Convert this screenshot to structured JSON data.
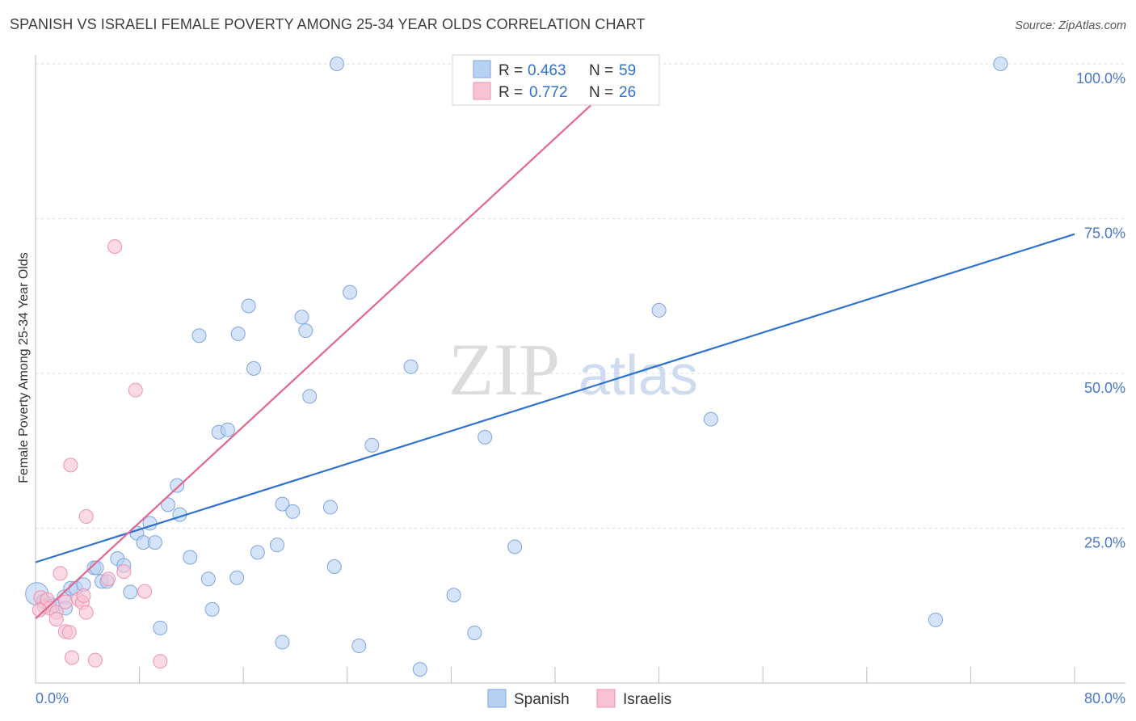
{
  "title": "SPANISH VS ISRAELI FEMALE POVERTY AMONG 25-34 YEAR OLDS CORRELATION CHART",
  "source": "Source: ZipAtlas.com",
  "watermark": {
    "zip": "ZIP",
    "atlas": "atlas"
  },
  "colors": {
    "spanish_fill": "#b8d0f2",
    "spanish_stroke": "#7ea6e0",
    "spanish_line": "#2f72cf",
    "israeli_fill": "#f7c3d4",
    "israeli_stroke": "#ee92b0",
    "israeli_line": "#e2678e",
    "tick_text": "#4a78c9",
    "grid": "#d9d9d9"
  },
  "legend": {
    "r_label": "R =",
    "n_label": "N =",
    "rows": [
      {
        "series": "Spanish",
        "r": "0.463",
        "n": "59"
      },
      {
        "series": "Israelis",
        "r": "0.772",
        "n": "26"
      }
    ]
  },
  "chart_data": {
    "type": "scatter",
    "title": "SPANISH VS ISRAELI FEMALE POVERTY AMONG 25-34 YEAR OLDS CORRELATION CHART",
    "xlabel": "",
    "ylabel": "Female Poverty Among 25-34 Year Olds",
    "xlim": [
      0,
      80
    ],
    "ylim": [
      0,
      100
    ],
    "x_tick_labels": [
      "0.0%",
      "80.0%"
    ],
    "y_ticks": [
      25,
      50,
      75,
      100
    ],
    "y_tick_labels": [
      "25.0%",
      "50.0%",
      "75.0%",
      "100.0%"
    ],
    "grid": true,
    "legend_position": "top-center",
    "series": [
      {
        "name": "Spanish",
        "color": "#b8d0f2",
        "regression": {
          "x": [
            0,
            80
          ],
          "y": [
            19.5,
            72.5
          ]
        },
        "points": [
          [
            0.1,
            14.4
          ],
          [
            1.1,
            12.8
          ],
          [
            1.4,
            12.5
          ],
          [
            2.2,
            13.9
          ],
          [
            2.3,
            12.1
          ],
          [
            2.7,
            15.3
          ],
          [
            3.1,
            15.3
          ],
          [
            3.7,
            15.9
          ],
          [
            4.5,
            18.6
          ],
          [
            4.7,
            18.6
          ],
          [
            5.1,
            16.4
          ],
          [
            5.5,
            16.4
          ],
          [
            6.3,
            20.1
          ],
          [
            6.8,
            19.0
          ],
          [
            7.3,
            14.7
          ],
          [
            7.8,
            24.2
          ],
          [
            8.3,
            22.7
          ],
          [
            8.8,
            25.8
          ],
          [
            9.2,
            22.7
          ],
          [
            9.6,
            8.9
          ],
          [
            10.2,
            28.8
          ],
          [
            10.9,
            31.9
          ],
          [
            11.1,
            27.2
          ],
          [
            11.9,
            20.3
          ],
          [
            12.6,
            56.1
          ],
          [
            13.3,
            16.8
          ],
          [
            13.6,
            11.9
          ],
          [
            14.1,
            40.5
          ],
          [
            14.8,
            40.9
          ],
          [
            15.5,
            17.0
          ],
          [
            15.6,
            56.4
          ],
          [
            16.4,
            60.9
          ],
          [
            16.8,
            50.8
          ],
          [
            17.1,
            21.1
          ],
          [
            18.6,
            22.3
          ],
          [
            19.0,
            28.9
          ],
          [
            19.0,
            6.6
          ],
          [
            19.8,
            27.7
          ],
          [
            20.5,
            59.1
          ],
          [
            20.8,
            56.9
          ],
          [
            21.1,
            46.3
          ],
          [
            22.7,
            28.4
          ],
          [
            23.0,
            18.8
          ],
          [
            23.2,
            100.0
          ],
          [
            24.2,
            63.1
          ],
          [
            24.9,
            6.0
          ],
          [
            25.9,
            38.4
          ],
          [
            28.9,
            51.1
          ],
          [
            29.6,
            2.2
          ],
          [
            32.2,
            14.2
          ],
          [
            33.8,
            8.1
          ],
          [
            34.6,
            39.7
          ],
          [
            36.9,
            22.0
          ],
          [
            47.1,
            100.0
          ],
          [
            48.0,
            60.2
          ],
          [
            52.0,
            42.6
          ],
          [
            69.3,
            10.2
          ],
          [
            74.3,
            100.0
          ],
          [
            0.6,
            13.2
          ]
        ]
      },
      {
        "name": "Israelis",
        "color": "#f7c3d4",
        "regression": {
          "x": [
            0,
            46.2
          ],
          "y": [
            10.4,
            100.0
          ]
        },
        "points": [
          [
            0.4,
            13.8
          ],
          [
            0.7,
            12.3
          ],
          [
            0.9,
            13.5
          ],
          [
            1.1,
            12.1
          ],
          [
            1.6,
            11.4
          ],
          [
            1.6,
            10.3
          ],
          [
            1.9,
            17.7
          ],
          [
            2.3,
            13.1
          ],
          [
            2.3,
            8.3
          ],
          [
            2.6,
            8.2
          ],
          [
            2.7,
            35.2
          ],
          [
            2.8,
            4.1
          ],
          [
            3.3,
            13.5
          ],
          [
            3.6,
            13.0
          ],
          [
            3.9,
            26.9
          ],
          [
            3.9,
            11.4
          ],
          [
            4.6,
            3.7
          ],
          [
            5.6,
            16.8
          ],
          [
            6.1,
            70.5
          ],
          [
            6.8,
            18.0
          ],
          [
            7.7,
            47.3
          ],
          [
            8.4,
            14.8
          ],
          [
            9.6,
            3.5
          ],
          [
            3.7,
            14.1
          ],
          [
            0.3,
            11.8
          ],
          [
            46.3,
            100.0
          ]
        ]
      }
    ]
  },
  "bottom_legend": [
    "Spanish",
    "Israelis"
  ]
}
